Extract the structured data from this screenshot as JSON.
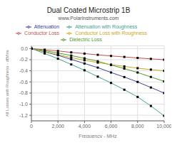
{
  "chart_data": {
    "type": "line",
    "title": "Dual Coated Microstrip 1B",
    "subtitle": "www.PolarInstruments.com",
    "x_label": "Frequency - MHz",
    "y_label": "All Losses with Roughness - dB/Ins",
    "x": [
      0,
      1000,
      2000,
      3000,
      4000,
      5000,
      6000,
      7000,
      8000,
      9000,
      10000
    ],
    "series": [
      {
        "name": "Conductor Loss",
        "color": "#c0504d",
        "marker": "square",
        "values": [
          0.0,
          -0.02,
          -0.042,
          -0.068,
          -0.09,
          -0.112,
          -0.132,
          -0.15,
          -0.168,
          -0.185,
          -0.2
        ]
      },
      {
        "name": "Dielectric Loss",
        "color": "#4f9a2f",
        "marker": "square",
        "values": [
          0.0,
          -0.038,
          -0.078,
          -0.125,
          -0.175,
          -0.228,
          -0.295,
          -0.36,
          -0.43,
          -0.51,
          -0.59
        ]
      },
      {
        "name": "Attenuation",
        "color": "#4040a0",
        "marker": "square",
        "values": [
          0.0,
          -0.058,
          -0.12,
          -0.195,
          -0.268,
          -0.342,
          -0.43,
          -0.512,
          -0.6,
          -0.7,
          -0.8
        ]
      },
      {
        "name": "Conductor Loss with Roughness",
        "color": "#c8a820",
        "marker": "square",
        "values": [
          0.0,
          -0.055,
          -0.108,
          -0.162,
          -0.21,
          -0.252,
          -0.288,
          -0.32,
          -0.352,
          -0.378,
          -0.4
        ]
      },
      {
        "name": "Attenuation with Roughness",
        "color": "#40a090",
        "marker": "square",
        "values": [
          0.0,
          -0.088,
          -0.182,
          -0.285,
          -0.39,
          -0.505,
          -0.618,
          -0.74,
          -0.87,
          -1.032,
          -1.21
        ]
      }
    ],
    "xlim": [
      0,
      10000
    ],
    "ylim": [
      -1.3,
      0.05
    ],
    "xticks": [
      0,
      {
        "value": 2000,
        "label": "2,000"
      },
      {
        "value": 4000,
        "label": "4,000"
      },
      {
        "value": 6000,
        "label": "6,000"
      },
      {
        "value": 8000,
        "label": "8,000"
      },
      {
        "value": 10000,
        "label": "10,000"
      }
    ],
    "yticks": [
      {
        "value": 0.0,
        "label": "0.0"
      },
      -0.2,
      -0.4,
      -0.6,
      -0.8,
      {
        "value": -1.0,
        "label": "-1.0"
      },
      -1.2
    ],
    "grid": true,
    "legend": "top"
  }
}
